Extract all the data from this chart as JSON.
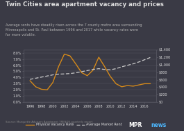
{
  "title": "Twin Cities area apartment vacancy and prices",
  "subtitle": "Average rents have steadily risen across the 7 county metro area surrounding\nMinneapolis and St. Paul between 1996 and 2017 while vacancy rates were\nfar more volatile.",
  "source": "Source: Marquette Advisors Apartment TRENDS quarterly report",
  "background_color": "#3a3a45",
  "header_color": "#3a3a45",
  "chart_bg_color": "#3a3a45",
  "text_color": "#e0e0e0",
  "subtitle_color": "#b0b0b0",
  "vacancy_color": "#d4891a",
  "rent_color": "#cccccc",
  "years": [
    1996,
    1997,
    1998,
    1999,
    2000,
    2001,
    2002,
    2003,
    2004,
    2005,
    2006,
    2007,
    2008,
    2009,
    2010,
    2011,
    2012,
    2013,
    2014,
    2015,
    2016,
    2017
  ],
  "vacancy_rate": [
    3.5,
    2.5,
    2.1,
    2.0,
    3.2,
    5.8,
    7.8,
    7.5,
    6.2,
    4.8,
    4.3,
    5.2,
    7.3,
    5.8,
    4.2,
    3.0,
    2.5,
    2.7,
    2.6,
    2.8,
    3.0,
    3.0
  ],
  "avg_rent": [
    610,
    640,
    670,
    700,
    730,
    750,
    755,
    765,
    785,
    815,
    845,
    875,
    895,
    875,
    865,
    895,
    945,
    985,
    1025,
    1075,
    1135,
    1195
  ],
  "ylim_left": [
    0,
    8.5
  ],
  "ylim_right": [
    0,
    1400
  ],
  "yticks_left": [
    0.0,
    1.0,
    2.0,
    3.0,
    4.0,
    5.0,
    6.0,
    7.0,
    8.0
  ],
  "yticks_right": [
    0,
    200,
    400,
    600,
    800,
    1000,
    1200,
    1400
  ],
  "xticks": [
    1996,
    1998,
    2000,
    2002,
    2004,
    2006,
    2008,
    2010,
    2012,
    2014,
    2016
  ],
  "grid_color": "#555560",
  "spine_color": "#555560",
  "mpr_color": "#ffffff",
  "news_color": "#4db8ff"
}
